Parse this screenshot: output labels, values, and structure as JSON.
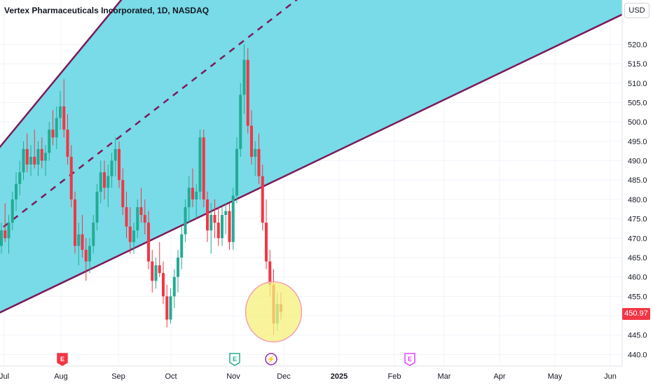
{
  "header": {
    "title": "Vertex Pharmaceuticals Incorporated, 1D, NASDAQ"
  },
  "currency_button": "USD",
  "last_price_label": "450.97",
  "colors": {
    "up": "#22ab94",
    "down": "#f23645",
    "channel_fill": "#78dbe7",
    "channel_line": "#7b1a5a",
    "highlight": "#f5f07a"
  },
  "event_markers": [
    {
      "type": "earnings",
      "label": "E",
      "month": "Aug",
      "color": "#f23645",
      "x_index": 89
    },
    {
      "type": "earnings",
      "label": "E",
      "month": "Nov",
      "color": "#22ab94",
      "x_index": 335
    },
    {
      "type": "dividend-flash",
      "label": "⚡",
      "month": "Nov",
      "color": "#9c27b0",
      "x_index": 387
    },
    {
      "type": "earnings",
      "label": "E",
      "month": "Feb",
      "color": "#e040fb",
      "x_index": 585
    }
  ],
  "chart_data": {
    "type": "candlestick",
    "symbol": "Vertex Pharmaceuticals Incorporated",
    "interval": "1D",
    "exchange": "NASDAQ",
    "currency": "USD",
    "y_range": [
      437,
      530
    ],
    "y_ticks": [
      440,
      445,
      450,
      455,
      460,
      465,
      470,
      475,
      480,
      485,
      490,
      495,
      500,
      505,
      510,
      515,
      520
    ],
    "x_ticks": [
      "Jul",
      "Aug",
      "Sep",
      "Oct",
      "Nov",
      "Dec",
      "2025",
      "Feb",
      "Mar",
      "Apr",
      "May",
      "Jun"
    ],
    "last_price": 450.97,
    "candles": [
      {
        "o": 468,
        "h": 474,
        "l": 466,
        "c": 472
      },
      {
        "o": 472,
        "h": 479,
        "l": 469,
        "c": 470
      },
      {
        "o": 470,
        "h": 476,
        "l": 466,
        "c": 474
      },
      {
        "o": 474,
        "h": 482,
        "l": 472,
        "c": 480
      },
      {
        "o": 480,
        "h": 487,
        "l": 477,
        "c": 484
      },
      {
        "o": 484,
        "h": 490,
        "l": 481,
        "c": 487
      },
      {
        "o": 487,
        "h": 495,
        "l": 485,
        "c": 493
      },
      {
        "o": 493,
        "h": 497,
        "l": 487,
        "c": 489
      },
      {
        "o": 489,
        "h": 494,
        "l": 486,
        "c": 491
      },
      {
        "o": 491,
        "h": 498,
        "l": 488,
        "c": 489
      },
      {
        "o": 489,
        "h": 495,
        "l": 486,
        "c": 493
      },
      {
        "o": 493,
        "h": 496,
        "l": 488,
        "c": 490
      },
      {
        "o": 490,
        "h": 494,
        "l": 486,
        "c": 492
      },
      {
        "o": 492,
        "h": 500,
        "l": 490,
        "c": 498
      },
      {
        "o": 498,
        "h": 503,
        "l": 494,
        "c": 496
      },
      {
        "o": 496,
        "h": 504,
        "l": 493,
        "c": 501
      },
      {
        "o": 501,
        "h": 508,
        "l": 498,
        "c": 504
      },
      {
        "o": 504,
        "h": 511,
        "l": 496,
        "c": 498
      },
      {
        "o": 498,
        "h": 502,
        "l": 489,
        "c": 491
      },
      {
        "o": 491,
        "h": 494,
        "l": 478,
        "c": 480
      },
      {
        "o": 480,
        "h": 482,
        "l": 466,
        "c": 468
      },
      {
        "o": 468,
        "h": 474,
        "l": 463,
        "c": 471
      },
      {
        "o": 471,
        "h": 476,
        "l": 465,
        "c": 467
      },
      {
        "o": 467,
        "h": 470,
        "l": 459,
        "c": 464
      },
      {
        "o": 464,
        "h": 470,
        "l": 461,
        "c": 468
      },
      {
        "o": 468,
        "h": 476,
        "l": 466,
        "c": 474
      },
      {
        "o": 474,
        "h": 484,
        "l": 472,
        "c": 482
      },
      {
        "o": 482,
        "h": 490,
        "l": 479,
        "c": 487
      },
      {
        "o": 487,
        "h": 490,
        "l": 480,
        "c": 483
      },
      {
        "o": 483,
        "h": 489,
        "l": 478,
        "c": 486
      },
      {
        "o": 486,
        "h": 492,
        "l": 483,
        "c": 490
      },
      {
        "o": 490,
        "h": 496,
        "l": 486,
        "c": 493
      },
      {
        "o": 493,
        "h": 495,
        "l": 483,
        "c": 485
      },
      {
        "o": 485,
        "h": 488,
        "l": 476,
        "c": 478
      },
      {
        "o": 478,
        "h": 482,
        "l": 470,
        "c": 473
      },
      {
        "o": 473,
        "h": 478,
        "l": 466,
        "c": 469
      },
      {
        "o": 469,
        "h": 474,
        "l": 466,
        "c": 472
      },
      {
        "o": 472,
        "h": 480,
        "l": 470,
        "c": 478
      },
      {
        "o": 478,
        "h": 483,
        "l": 474,
        "c": 476
      },
      {
        "o": 476,
        "h": 480,
        "l": 471,
        "c": 474
      },
      {
        "o": 474,
        "h": 477,
        "l": 462,
        "c": 464
      },
      {
        "o": 464,
        "h": 467,
        "l": 456,
        "c": 459
      },
      {
        "o": 459,
        "h": 465,
        "l": 457,
        "c": 463
      },
      {
        "o": 463,
        "h": 469,
        "l": 460,
        "c": 461
      },
      {
        "o": 461,
        "h": 464,
        "l": 453,
        "c": 455
      },
      {
        "o": 455,
        "h": 458,
        "l": 447,
        "c": 449
      },
      {
        "o": 449,
        "h": 457,
        "l": 448,
        "c": 455
      },
      {
        "o": 455,
        "h": 462,
        "l": 452,
        "c": 460
      },
      {
        "o": 460,
        "h": 467,
        "l": 456,
        "c": 465
      },
      {
        "o": 465,
        "h": 473,
        "l": 462,
        "c": 471
      },
      {
        "o": 471,
        "h": 480,
        "l": 469,
        "c": 478
      },
      {
        "o": 478,
        "h": 486,
        "l": 474,
        "c": 483
      },
      {
        "o": 483,
        "h": 488,
        "l": 478,
        "c": 480
      },
      {
        "o": 480,
        "h": 484,
        "l": 475,
        "c": 482
      },
      {
        "o": 482,
        "h": 498,
        "l": 480,
        "c": 496
      },
      {
        "o": 496,
        "h": 498,
        "l": 478,
        "c": 480
      },
      {
        "o": 480,
        "h": 482,
        "l": 469,
        "c": 472
      },
      {
        "o": 472,
        "h": 479,
        "l": 466,
        "c": 476
      },
      {
        "o": 476,
        "h": 480,
        "l": 470,
        "c": 474
      },
      {
        "o": 474,
        "h": 478,
        "l": 468,
        "c": 470
      },
      {
        "o": 470,
        "h": 478,
        "l": 468,
        "c": 476
      },
      {
        "o": 476,
        "h": 479,
        "l": 471,
        "c": 477
      },
      {
        "o": 477,
        "h": 479,
        "l": 467,
        "c": 469
      },
      {
        "o": 469,
        "h": 483,
        "l": 467,
        "c": 481
      },
      {
        "o": 481,
        "h": 496,
        "l": 479,
        "c": 493
      },
      {
        "o": 493,
        "h": 510,
        "l": 491,
        "c": 507
      },
      {
        "o": 507,
        "h": 520,
        "l": 502,
        "c": 516
      },
      {
        "o": 516,
        "h": 519,
        "l": 497,
        "c": 499
      },
      {
        "o": 499,
        "h": 503,
        "l": 489,
        "c": 491
      },
      {
        "o": 491,
        "h": 495,
        "l": 486,
        "c": 493
      },
      {
        "o": 493,
        "h": 497,
        "l": 484,
        "c": 486
      },
      {
        "o": 486,
        "h": 489,
        "l": 472,
        "c": 474
      },
      {
        "o": 474,
        "h": 480,
        "l": 462,
        "c": 464
      },
      {
        "o": 464,
        "h": 467,
        "l": 455,
        "c": 458
      },
      {
        "o": 458,
        "h": 462,
        "l": 445,
        "c": 448
      },
      {
        "o": 448,
        "h": 456,
        "l": 446,
        "c": 453
      },
      {
        "o": 453,
        "h": 456,
        "l": 449,
        "c": 451
      }
    ],
    "channel": {
      "upper": [
        {
          "date_index": 0,
          "price": 494
        },
        {
          "date_index": 40,
          "price": 540
        }
      ],
      "lower": [
        {
          "date_index": 0,
          "price": 451
        },
        {
          "date_index": 143,
          "price": 516
        }
      ],
      "median": [
        {
          "date_index": 0,
          "price": 472.5
        },
        {
          "date_index": 100,
          "price": 546
        }
      ]
    },
    "highlight_circle": {
      "date_index": 74,
      "price": 451
    }
  }
}
